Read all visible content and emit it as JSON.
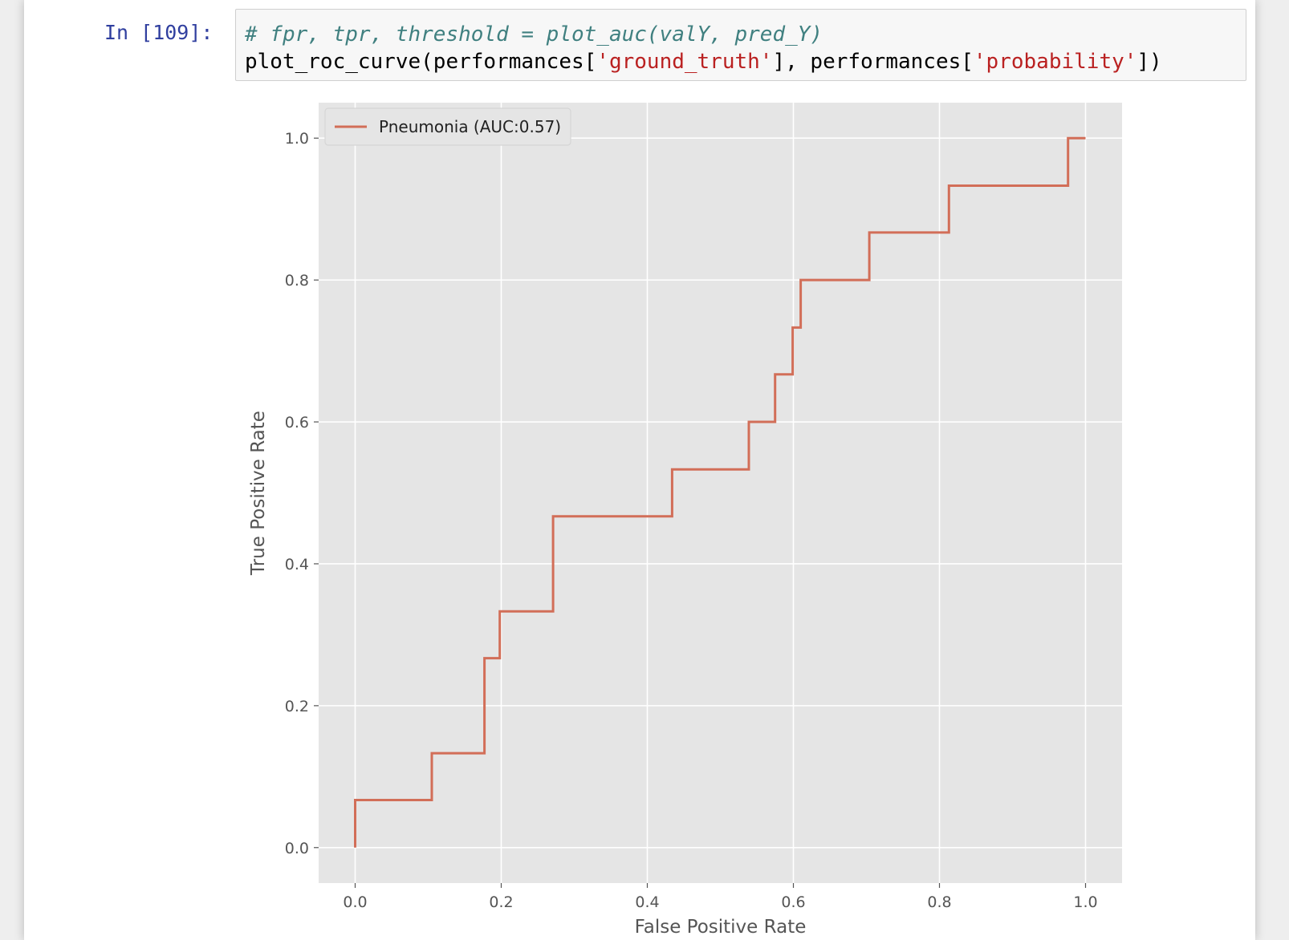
{
  "cell": {
    "prompt": "In [109]:",
    "code": {
      "line1": "# fpr, tpr, threshold = plot_auc(valY, pred_Y)",
      "line2_a": "plot_roc_curve(performances[",
      "line2_str1": "'ground_truth'",
      "line2_b": "], performances[",
      "line2_str2": "'probability'",
      "line2_c": "])"
    }
  },
  "colors": {
    "line": "#d26e58",
    "plot_bg": "#e5e5e5",
    "grid": "#ffffff",
    "comment": "#408080",
    "string": "#ba2121",
    "prompt": "#303f9f"
  },
  "chart_data": {
    "type": "line",
    "style": "ggplot",
    "drawstyle": "steps-post",
    "xlabel": "False Positive Rate",
    "ylabel": "True Positive Rate",
    "xlim": [
      -0.05,
      1.05
    ],
    "ylim": [
      -0.05,
      1.05
    ],
    "xticks": [
      "0.0",
      "0.2",
      "0.4",
      "0.6",
      "0.8",
      "1.0"
    ],
    "yticks": [
      "0.0",
      "0.2",
      "0.4",
      "0.6",
      "0.8",
      "1.0"
    ],
    "grid": true,
    "legend_position": "upper left",
    "series": [
      {
        "name": "Pneumonia (AUC:0.57)",
        "x": [
          0.0,
          0.0,
          0.105,
          0.105,
          0.177,
          0.177,
          0.198,
          0.198,
          0.271,
          0.271,
          0.434,
          0.434,
          0.539,
          0.539,
          0.575,
          0.575,
          0.599,
          0.599,
          0.61,
          0.61,
          0.704,
          0.704,
          0.813,
          0.813,
          0.976,
          0.976,
          1.0
        ],
        "y": [
          0.0,
          0.067,
          0.067,
          0.133,
          0.133,
          0.267,
          0.267,
          0.333,
          0.333,
          0.467,
          0.467,
          0.533,
          0.533,
          0.6,
          0.6,
          0.667,
          0.667,
          0.733,
          0.733,
          0.8,
          0.8,
          0.867,
          0.867,
          0.933,
          0.933,
          1.0,
          1.0
        ]
      }
    ]
  }
}
